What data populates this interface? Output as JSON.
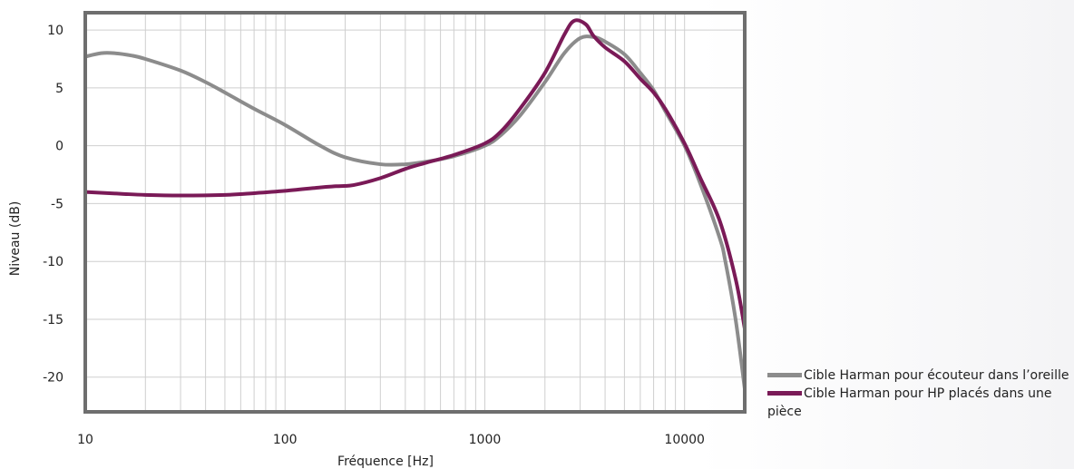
{
  "chart_data": {
    "type": "line",
    "xscale": "log",
    "xlabel": "Fréquence [Hz]",
    "ylabel": "Niveau (dB)",
    "xlim": [
      10,
      20000
    ],
    "ylim": [
      -23,
      11.5
    ],
    "x_ticks": [
      10,
      100,
      1000,
      10000
    ],
    "x_tick_labels": [
      "10",
      "100",
      "1000",
      "10000"
    ],
    "y_ticks": [
      10,
      5,
      0,
      -5,
      -10,
      -15,
      -20
    ],
    "y_tick_labels": [
      "10",
      "5",
      "0",
      "-5",
      "-10",
      "-15",
      "-20"
    ],
    "grid": "vertical-log",
    "legend_position": "bottom-right-outside",
    "series": [
      {
        "name": "Cible Harman pour écouteur dans l’oreille",
        "color": "#8c8c8c",
        "x": [
          10,
          12,
          14,
          17,
          20,
          30,
          40,
          50,
          70,
          100,
          150,
          200,
          300,
          400,
          500,
          700,
          1000,
          1200,
          1500,
          2000,
          2500,
          3000,
          3500,
          4000,
          5000,
          6000,
          7000,
          8000,
          10000,
          12000,
          15000,
          16000,
          18000,
          20000
        ],
        "values": [
          7.7,
          8.0,
          8.0,
          7.8,
          7.5,
          6.5,
          5.5,
          4.6,
          3.2,
          1.8,
          0.0,
          -1.0,
          -1.6,
          -1.6,
          -1.4,
          -0.9,
          0.0,
          0.9,
          2.6,
          5.5,
          8.0,
          9.3,
          9.4,
          9.0,
          7.9,
          6.3,
          4.8,
          3.0,
          0.0,
          -3.3,
          -8.0,
          -10.0,
          -15.0,
          -21.0
        ]
      },
      {
        "name": "Cible Harman pour HP placés dans une pièce",
        "color": "#7a1a57",
        "x": [
          10,
          15,
          20,
          30,
          50,
          70,
          100,
          150,
          180,
          220,
          300,
          400,
          500,
          700,
          1000,
          1200,
          1500,
          2000,
          2500,
          2800,
          3200,
          3500,
          4000,
          5000,
          6000,
          7000,
          8000,
          10000,
          12000,
          15000,
          18000,
          20000
        ],
        "values": [
          -4.0,
          -4.15,
          -4.25,
          -4.3,
          -4.25,
          -4.1,
          -3.9,
          -3.6,
          -3.5,
          -3.4,
          -2.8,
          -2.0,
          -1.5,
          -0.8,
          0.2,
          1.2,
          3.2,
          6.3,
          9.6,
          10.8,
          10.5,
          9.5,
          8.5,
          7.3,
          5.8,
          4.6,
          3.2,
          0.2,
          -2.8,
          -6.5,
          -11.5,
          -15.8
        ]
      }
    ]
  }
}
